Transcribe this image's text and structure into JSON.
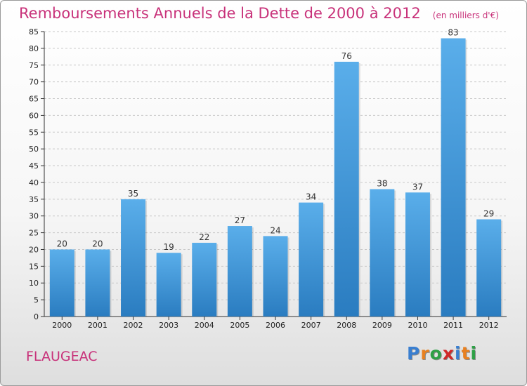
{
  "header": {
    "title": "Remboursements Annuels de la Dette de 2000 à 2012",
    "unit": "(en milliers d'€)"
  },
  "footer": {
    "commune": "FLAUGEAC",
    "logo_letters": [
      "P",
      "r",
      "o",
      "x",
      "i",
      "t",
      "i"
    ]
  },
  "colors": {
    "title": "#c8327a",
    "bar_top": "#5aaeea",
    "bar_bottom": "#2a7cc0",
    "logo": [
      "#3a7fd0",
      "#e88020",
      "#2ea046",
      "#d02828",
      "#3a7fd0",
      "#e88020",
      "#2ea046"
    ]
  },
  "chart_data": {
    "type": "bar",
    "title": "Remboursements Annuels de la Dette de 2000 à 2012",
    "xlabel": "",
    "ylabel": "",
    "categories": [
      "2000",
      "2001",
      "2002",
      "2003",
      "2004",
      "2005",
      "2006",
      "2007",
      "2008",
      "2009",
      "2010",
      "2011",
      "2012"
    ],
    "values": [
      20,
      20,
      35,
      19,
      22,
      27,
      24,
      34,
      76,
      38,
      37,
      83,
      29
    ],
    "ylim": [
      0,
      85
    ],
    "yticks": [
      0,
      5,
      10,
      15,
      20,
      25,
      30,
      35,
      40,
      45,
      50,
      55,
      60,
      65,
      70,
      75,
      80,
      85
    ],
    "grid": true,
    "legend": "none"
  }
}
